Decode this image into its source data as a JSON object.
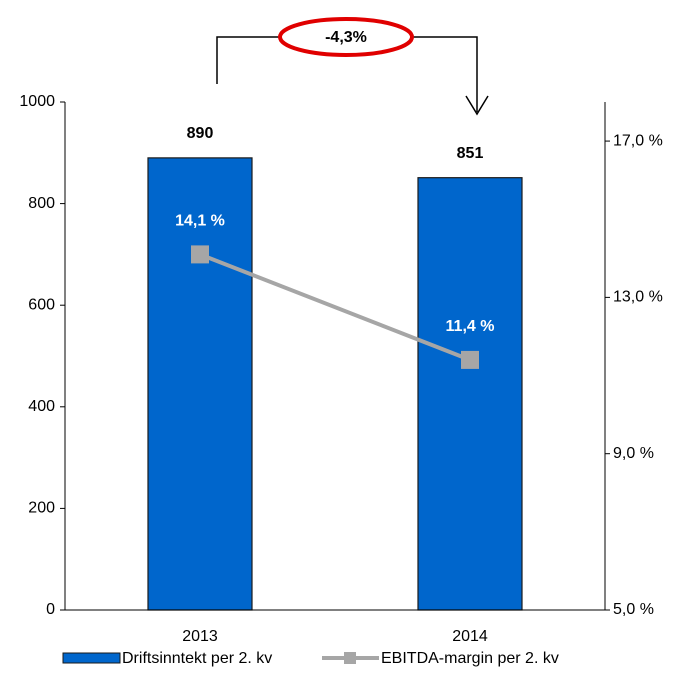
{
  "chart_data": {
    "type": "bar",
    "categories": [
      "2013",
      "2014"
    ],
    "series": [
      {
        "name": "Driftsinntekt per 2. kv",
        "color": "#0066cc",
        "values": [
          890,
          851
        ]
      },
      {
        "name": "EBITDA-margin per 2. kv",
        "color": "#a6a6a6",
        "type": "line",
        "axis": "y2",
        "values": [
          14.1,
          11.4
        ],
        "value_labels": [
          "14,1 %",
          "11,4 %"
        ]
      }
    ],
    "ylim": [
      0,
      1000
    ],
    "yticks": [
      0,
      200,
      400,
      600,
      800,
      1000
    ],
    "y2lim": [
      5,
      18
    ],
    "y2ticks": [
      {
        "value": 5,
        "label": "5,0 %"
      },
      {
        "value": 9,
        "label": "9,0 %"
      },
      {
        "value": 13,
        "label": "13,0 %"
      },
      {
        "value": 17,
        "label": "17,0 %"
      }
    ],
    "annotation": "-4,3%",
    "legend": "bottom"
  }
}
